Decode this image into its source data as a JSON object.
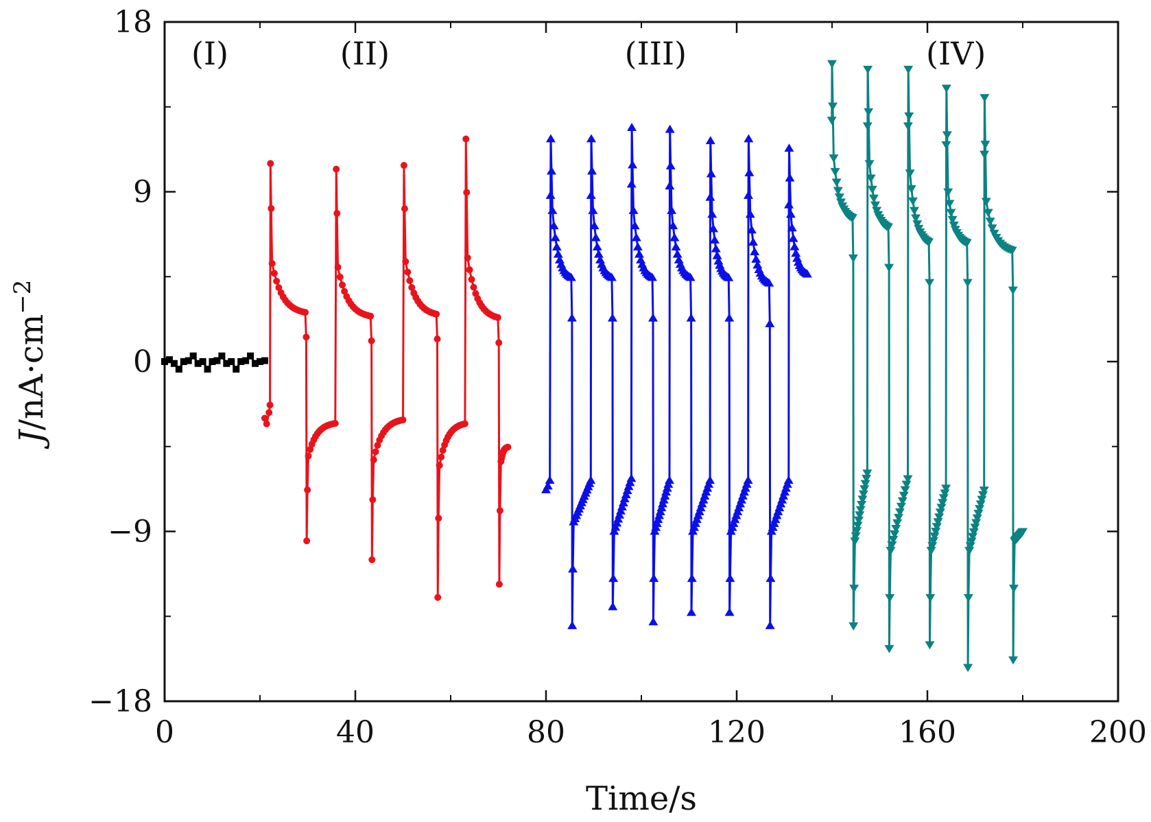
{
  "chart_data": {
    "type": "line",
    "xlabel": "Time/s",
    "ylabel": "J/nA·cm−2",
    "ylabel_parts": {
      "symbol": "J",
      "unit": "/nA·cm",
      "exponent": "−2"
    },
    "xlim": [
      0,
      200
    ],
    "ylim": [
      -18,
      18
    ],
    "xticks": [
      "0",
      "40",
      "80",
      "120",
      "160",
      "200"
    ],
    "yticks": [
      "−18",
      "−9",
      "0",
      "9",
      "18"
    ],
    "grid": false,
    "legend": "none",
    "region_labels": [
      {
        "text": "(I)",
        "x": 9.5
      },
      {
        "text": "(II)",
        "x": 42
      },
      {
        "text": "(III)",
        "x": 103
      },
      {
        "text": "(IV)",
        "x": 166
      }
    ],
    "series": [
      {
        "label": "(I)",
        "color": "#000000",
        "marker": "square",
        "x": [
          0,
          1,
          2,
          3,
          4,
          5,
          6,
          7,
          8,
          9,
          10,
          11,
          12,
          13,
          14,
          15,
          16,
          17,
          18,
          19,
          20,
          21
        ],
        "y": [
          0.0,
          0.1,
          -0.1,
          -0.4,
          0.0,
          0.05,
          0.3,
          -0.1,
          0.0,
          -0.4,
          0.0,
          0.05,
          0.3,
          -0.1,
          0.0,
          -0.4,
          0.0,
          0.05,
          0.3,
          -0.1,
          0.0,
          0.05
        ]
      },
      {
        "label": "(II)",
        "color": "#e8141b",
        "marker": "circle",
        "periods": [
          {
            "t0": 21,
            "t_on": 22.2,
            "t_off": 29.8,
            "peak": 10.5,
            "pre_level": -3.0,
            "plateau_start": 5.2,
            "plateau_end": 2.5,
            "neg_peak": -9.5,
            "neg_start": -5.0,
            "neg_end": -3.2
          },
          {
            "t0": 29.8,
            "t_on": 36,
            "t_off": 43.5,
            "peak": 10.2,
            "pre_level": -3.2,
            "plateau_start": 5.0,
            "plateau_end": 2.3,
            "neg_peak": -10.5,
            "neg_start": -5.2,
            "neg_end": -3.0
          },
          {
            "t0": 43.5,
            "t_on": 50.2,
            "t_off": 57.3,
            "peak": 10.4,
            "pre_level": -3.0,
            "plateau_start": 5.3,
            "plateau_end": 2.4,
            "neg_peak": -12.5,
            "neg_start": -5.5,
            "neg_end": -3.2
          },
          {
            "t0": 57.3,
            "t_on": 63.2,
            "t_off": 70.2,
            "peak": 11.8,
            "pre_level": -3.5,
            "plateau_start": 5.5,
            "plateau_end": 2.2,
            "neg_peak": -11.8,
            "neg_start": -5.3,
            "neg_end": -4.5
          }
        ],
        "end": {
          "t": 72,
          "y": -4.5
        }
      },
      {
        "label": "(III)",
        "color": "#0a10e6",
        "marker": "triangle-up",
        "periods": [
          {
            "t_on": 81,
            "t_off": 85.5,
            "peak": 11.8,
            "plateau_start": 8.0,
            "plateau_end": 4.3,
            "neg_peak": -14.0,
            "neg_start": -8.5,
            "neg_end": -6.3
          },
          {
            "t_on": 89.5,
            "t_off": 94,
            "peak": 11.8,
            "plateau_start": 8.0,
            "plateau_end": 4.3,
            "neg_peak": -13.0,
            "neg_start": -9.0,
            "neg_end": -6.2
          },
          {
            "t_on": 98,
            "t_off": 102.5,
            "peak": 12.4,
            "plateau_start": 8.0,
            "plateau_end": 4.3,
            "neg_peak": -13.8,
            "neg_start": -9.0,
            "neg_end": -6.3
          },
          {
            "t_on": 106,
            "t_off": 110.5,
            "peak": 12.3,
            "plateau_start": 8.0,
            "plateau_end": 4.3,
            "neg_peak": -13.3,
            "neg_start": -9.0,
            "neg_end": -6.3
          },
          {
            "t_on": 114.5,
            "t_off": 118.5,
            "peak": 11.7,
            "plateau_start": 7.8,
            "plateau_end": 4.3,
            "neg_peak": -13.3,
            "neg_start": -9.0,
            "neg_end": -6.3
          },
          {
            "t_on": 122.5,
            "t_off": 127,
            "peak": 11.8,
            "plateau_start": 7.8,
            "plateau_end": 4.0,
            "neg_peak": -14.0,
            "neg_start": -9.0,
            "neg_end": -6.3
          },
          {
            "t_on": 131,
            "peak": 11.3,
            "plateau_start": 7.8,
            "plateau_end": 4.5
          }
        ],
        "start": {
          "t": 80,
          "y": -6.8
        },
        "end": {
          "t": 135,
          "y": 4.5
        }
      },
      {
        "label": "(IV)",
        "color": "#0c8282",
        "marker": "triangle-down",
        "periods": [
          {
            "t_on": 140,
            "t_off": 144.5,
            "peak": 15.8,
            "plateau_start": 10.8,
            "plateau_end": 7.5,
            "neg_peak": -14.0,
            "neg_start": -9.5,
            "neg_end": -5.9
          },
          {
            "t_on": 147.5,
            "t_off": 152,
            "peak": 15.5,
            "plateau_start": 10.5,
            "plateau_end": 7.0,
            "neg_peak": -15.2,
            "neg_start": -10.0,
            "neg_end": -6.2
          },
          {
            "t_on": 156,
            "t_off": 160.5,
            "peak": 15.5,
            "plateau_start": 10.0,
            "plateau_end": 6.2,
            "neg_peak": -15.0,
            "neg_start": -10.0,
            "neg_end": -6.7
          },
          {
            "t_on": 164,
            "t_off": 168.5,
            "peak": 14.5,
            "plateau_start": 9.0,
            "plateau_end": 6.2,
            "neg_peak": -16.2,
            "neg_start": -10.0,
            "neg_end": -6.8
          },
          {
            "t_on": 172,
            "t_off": 178,
            "peak": 14.0,
            "plateau_start": 8.5,
            "plateau_end": 5.8,
            "neg_peak": -15.8,
            "neg_start": -9.5,
            "neg_end": -9.0
          }
        ],
        "end": {
          "t": 180,
          "y": -9.0
        }
      }
    ]
  }
}
